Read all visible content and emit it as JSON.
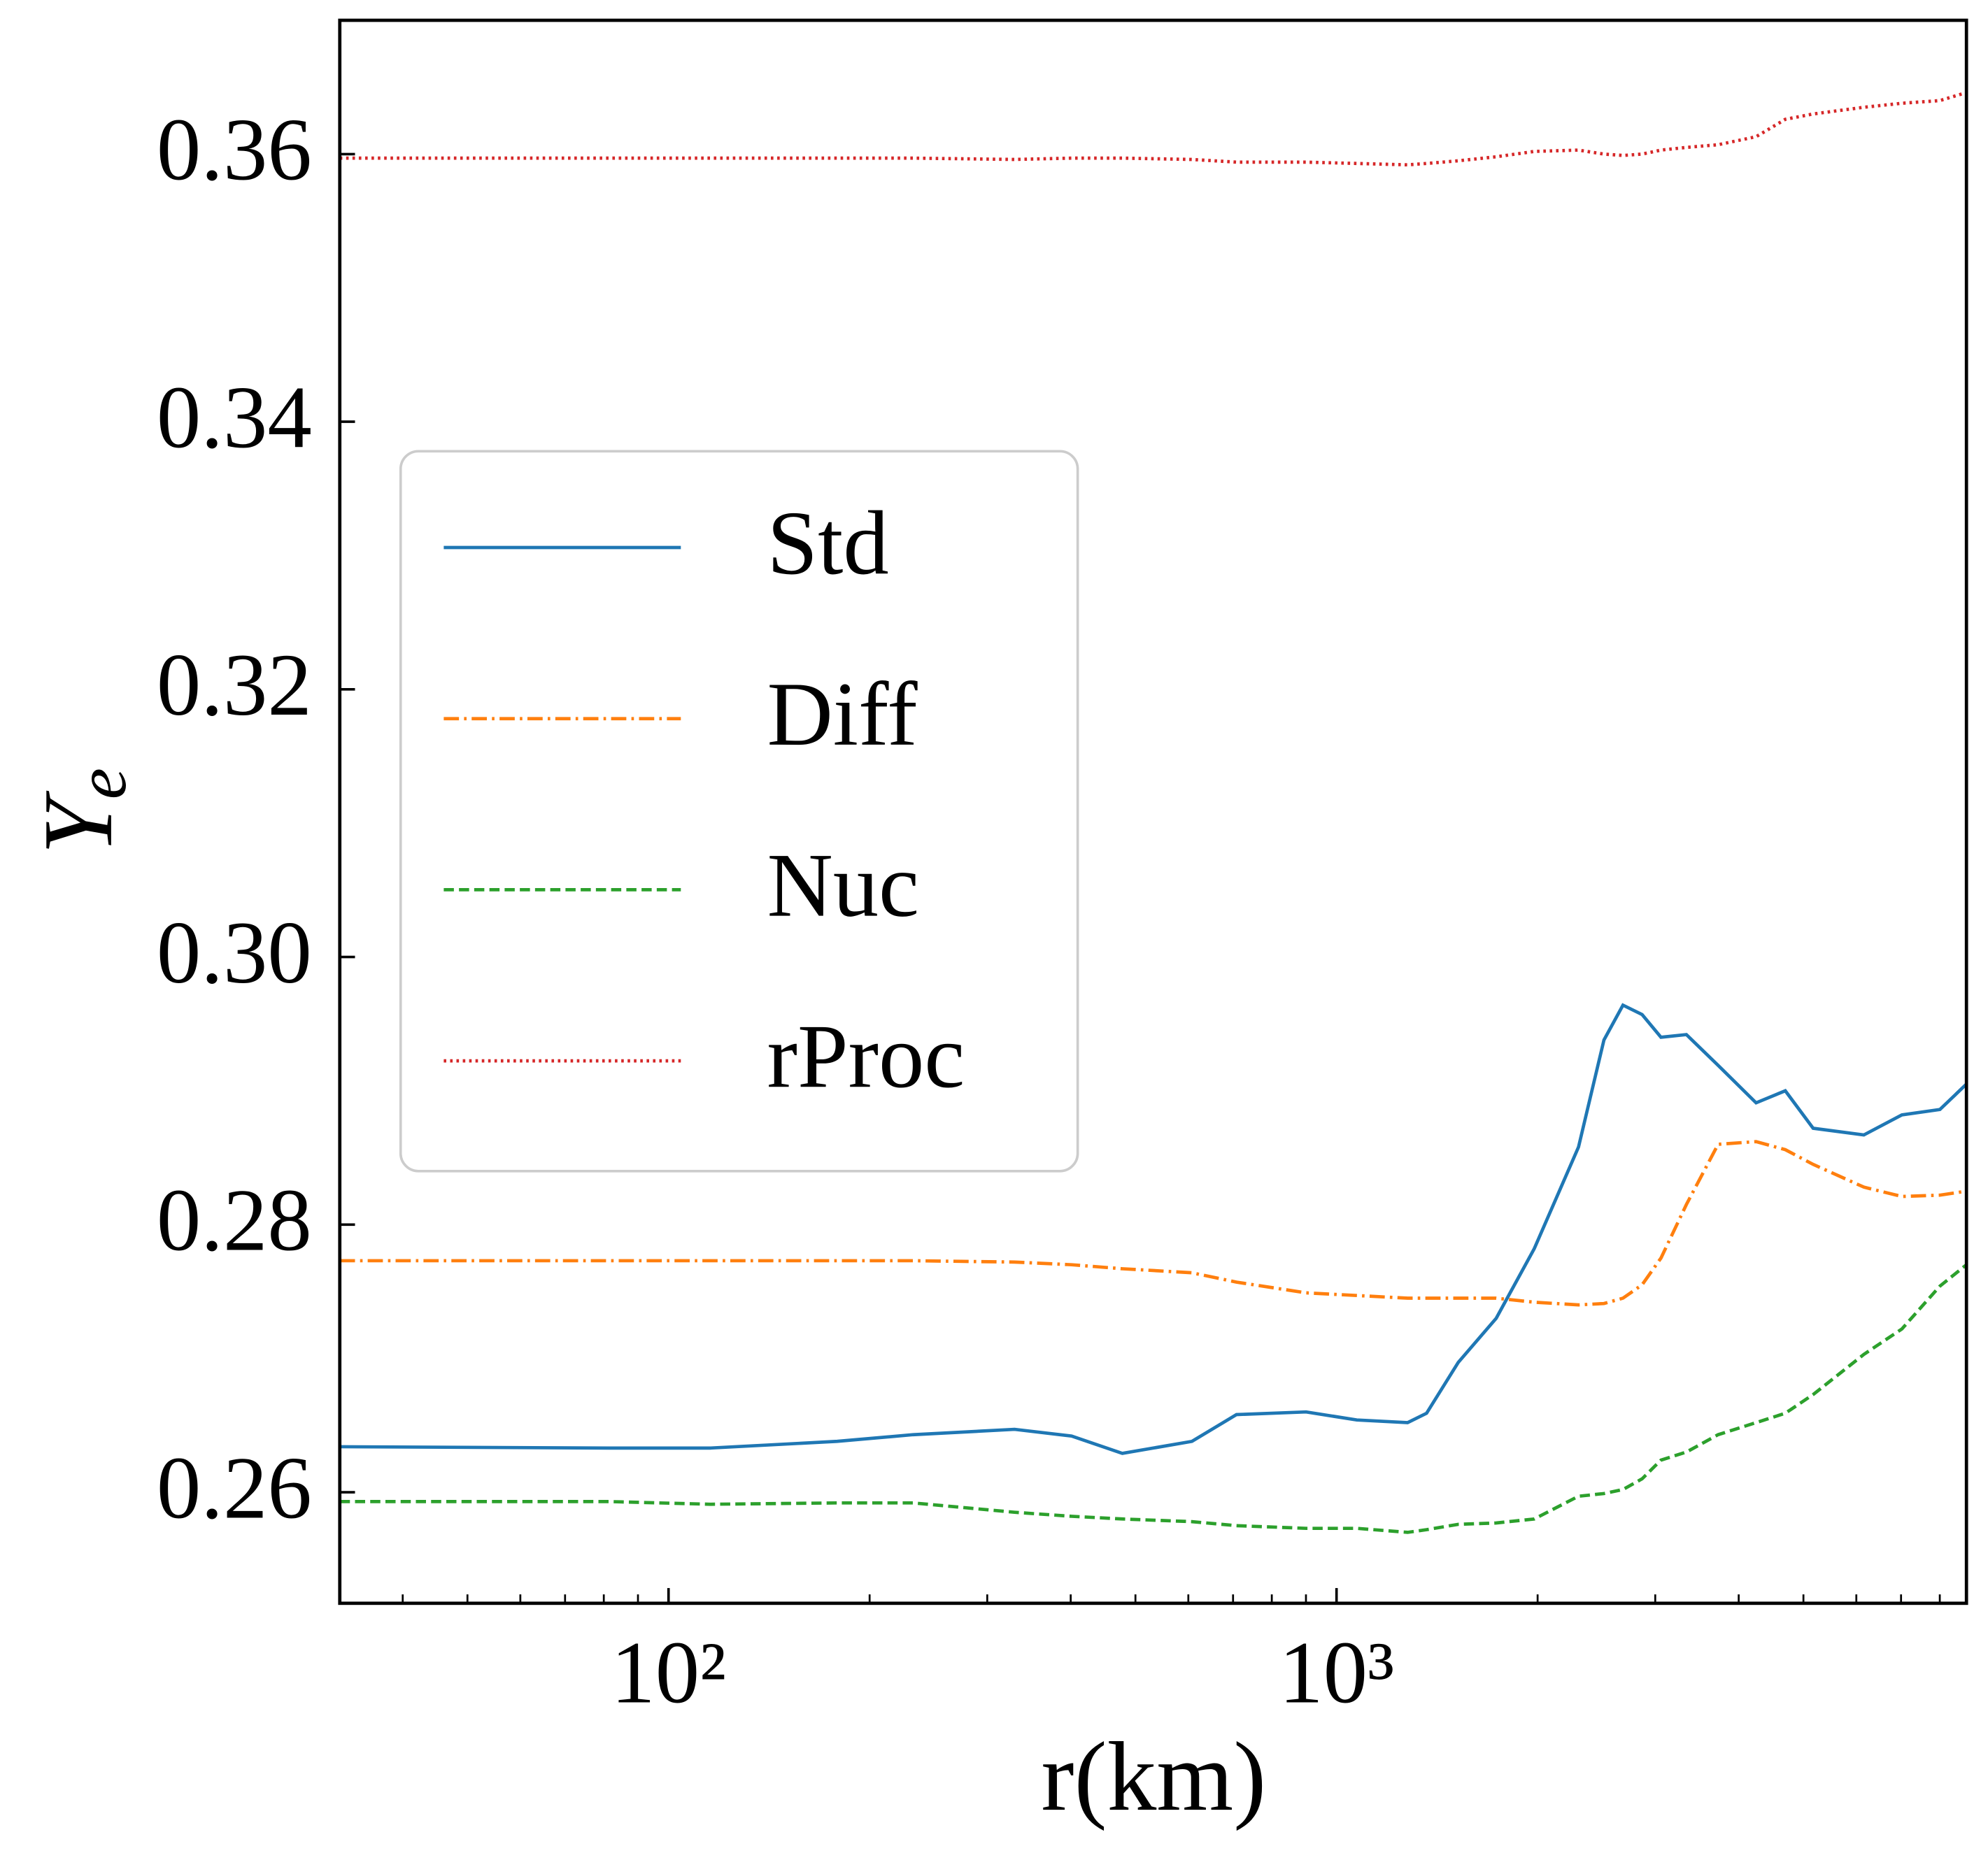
{
  "chart_data": {
    "type": "line",
    "xlabel": "r(km)",
    "ylabel": {
      "base": "Y",
      "sub": "e"
    },
    "xscale": "log",
    "xlim": [
      32.2,
      8770
    ],
    "ylim": [
      0.2517,
      0.37
    ],
    "xticks": [
      {
        "value": 100,
        "label": "10²"
      },
      {
        "value": 1000,
        "label": "10³"
      }
    ],
    "xminorticks": [
      40,
      50,
      60,
      70,
      80,
      90,
      200,
      300,
      400,
      500,
      600,
      700,
      800,
      900,
      2000,
      3000,
      4000,
      5000,
      6000,
      7000,
      8000
    ],
    "yticks": [
      0.26,
      0.28,
      {
        "value": 0.3,
        "label": "0.30"
      },
      0.32,
      0.34,
      0.36
    ],
    "legend": "center left",
    "x": [
      32.2,
      81.4,
      115.5,
      178.8,
      232.4,
      329.6,
      401.2,
      477.9,
      607.5,
      708.3,
      900.3,
      1072.5,
      1277.6,
      1363.9,
      1521.3,
      1734,
      1976.9,
      2303,
      2514,
      2684,
      2867,
      3060,
      3340,
      3726,
      4247,
      4697,
      5170,
      6158,
      7020,
      8003,
      8770
    ],
    "series": [
      {
        "name": "Std",
        "color": "#1f77b4",
        "linestyle": "solid",
        "values": [
          0.2634,
          0.2633,
          0.2633,
          0.2638,
          0.2643,
          0.2647,
          0.2642,
          0.2629,
          0.2638,
          0.2658,
          0.266,
          0.2654,
          0.2652,
          0.2659,
          0.2697,
          0.273,
          0.2782,
          0.2858,
          0.2938,
          0.2964,
          0.2957,
          0.294,
          0.2942,
          0.2919,
          0.2891,
          0.29,
          0.2872,
          0.2867,
          0.2882,
          0.2886,
          0.2905
        ]
      },
      {
        "name": "Diff",
        "color": "#ff7f0e",
        "linestyle": "dashdot",
        "values": [
          0.2773,
          0.2773,
          0.2773,
          0.2773,
          0.2773,
          0.2772,
          0.277,
          0.2767,
          0.2764,
          0.2757,
          0.2749,
          0.2747,
          0.2745,
          0.2745,
          0.2745,
          0.2745,
          0.2742,
          0.274,
          0.2741,
          0.2745,
          0.2755,
          0.2775,
          0.2815,
          0.286,
          0.2862,
          0.2856,
          0.2845,
          0.2828,
          0.2821,
          0.2822,
          0.2825
        ]
      },
      {
        "name": "Nuc",
        "color": "#2ca02c",
        "linestyle": "dashed",
        "values": [
          0.2593,
          0.2593,
          0.2591,
          0.2592,
          0.2592,
          0.2585,
          0.2582,
          0.258,
          0.2578,
          0.2575,
          0.2573,
          0.2573,
          0.257,
          0.2572,
          0.2576,
          0.2577,
          0.258,
          0.2597,
          0.2599,
          0.2602,
          0.261,
          0.2624,
          0.263,
          0.2643,
          0.2652,
          0.2659,
          0.2673,
          0.2703,
          0.2722,
          0.2754,
          0.277
        ]
      },
      {
        "name": "rProc",
        "color": "#d62728",
        "linestyle": "dotted",
        "values": [
          0.3597,
          0.3597,
          0.3597,
          0.3597,
          0.3597,
          0.3596,
          0.3597,
          0.3597,
          0.3596,
          0.3594,
          0.3594,
          0.3593,
          0.3592,
          0.3593,
          0.3595,
          0.3598,
          0.3602,
          0.3603,
          0.36,
          0.3599,
          0.36,
          0.3603,
          0.3605,
          0.3607,
          0.3613,
          0.3626,
          0.363,
          0.3635,
          0.3638,
          0.364,
          0.3646
        ]
      }
    ]
  }
}
